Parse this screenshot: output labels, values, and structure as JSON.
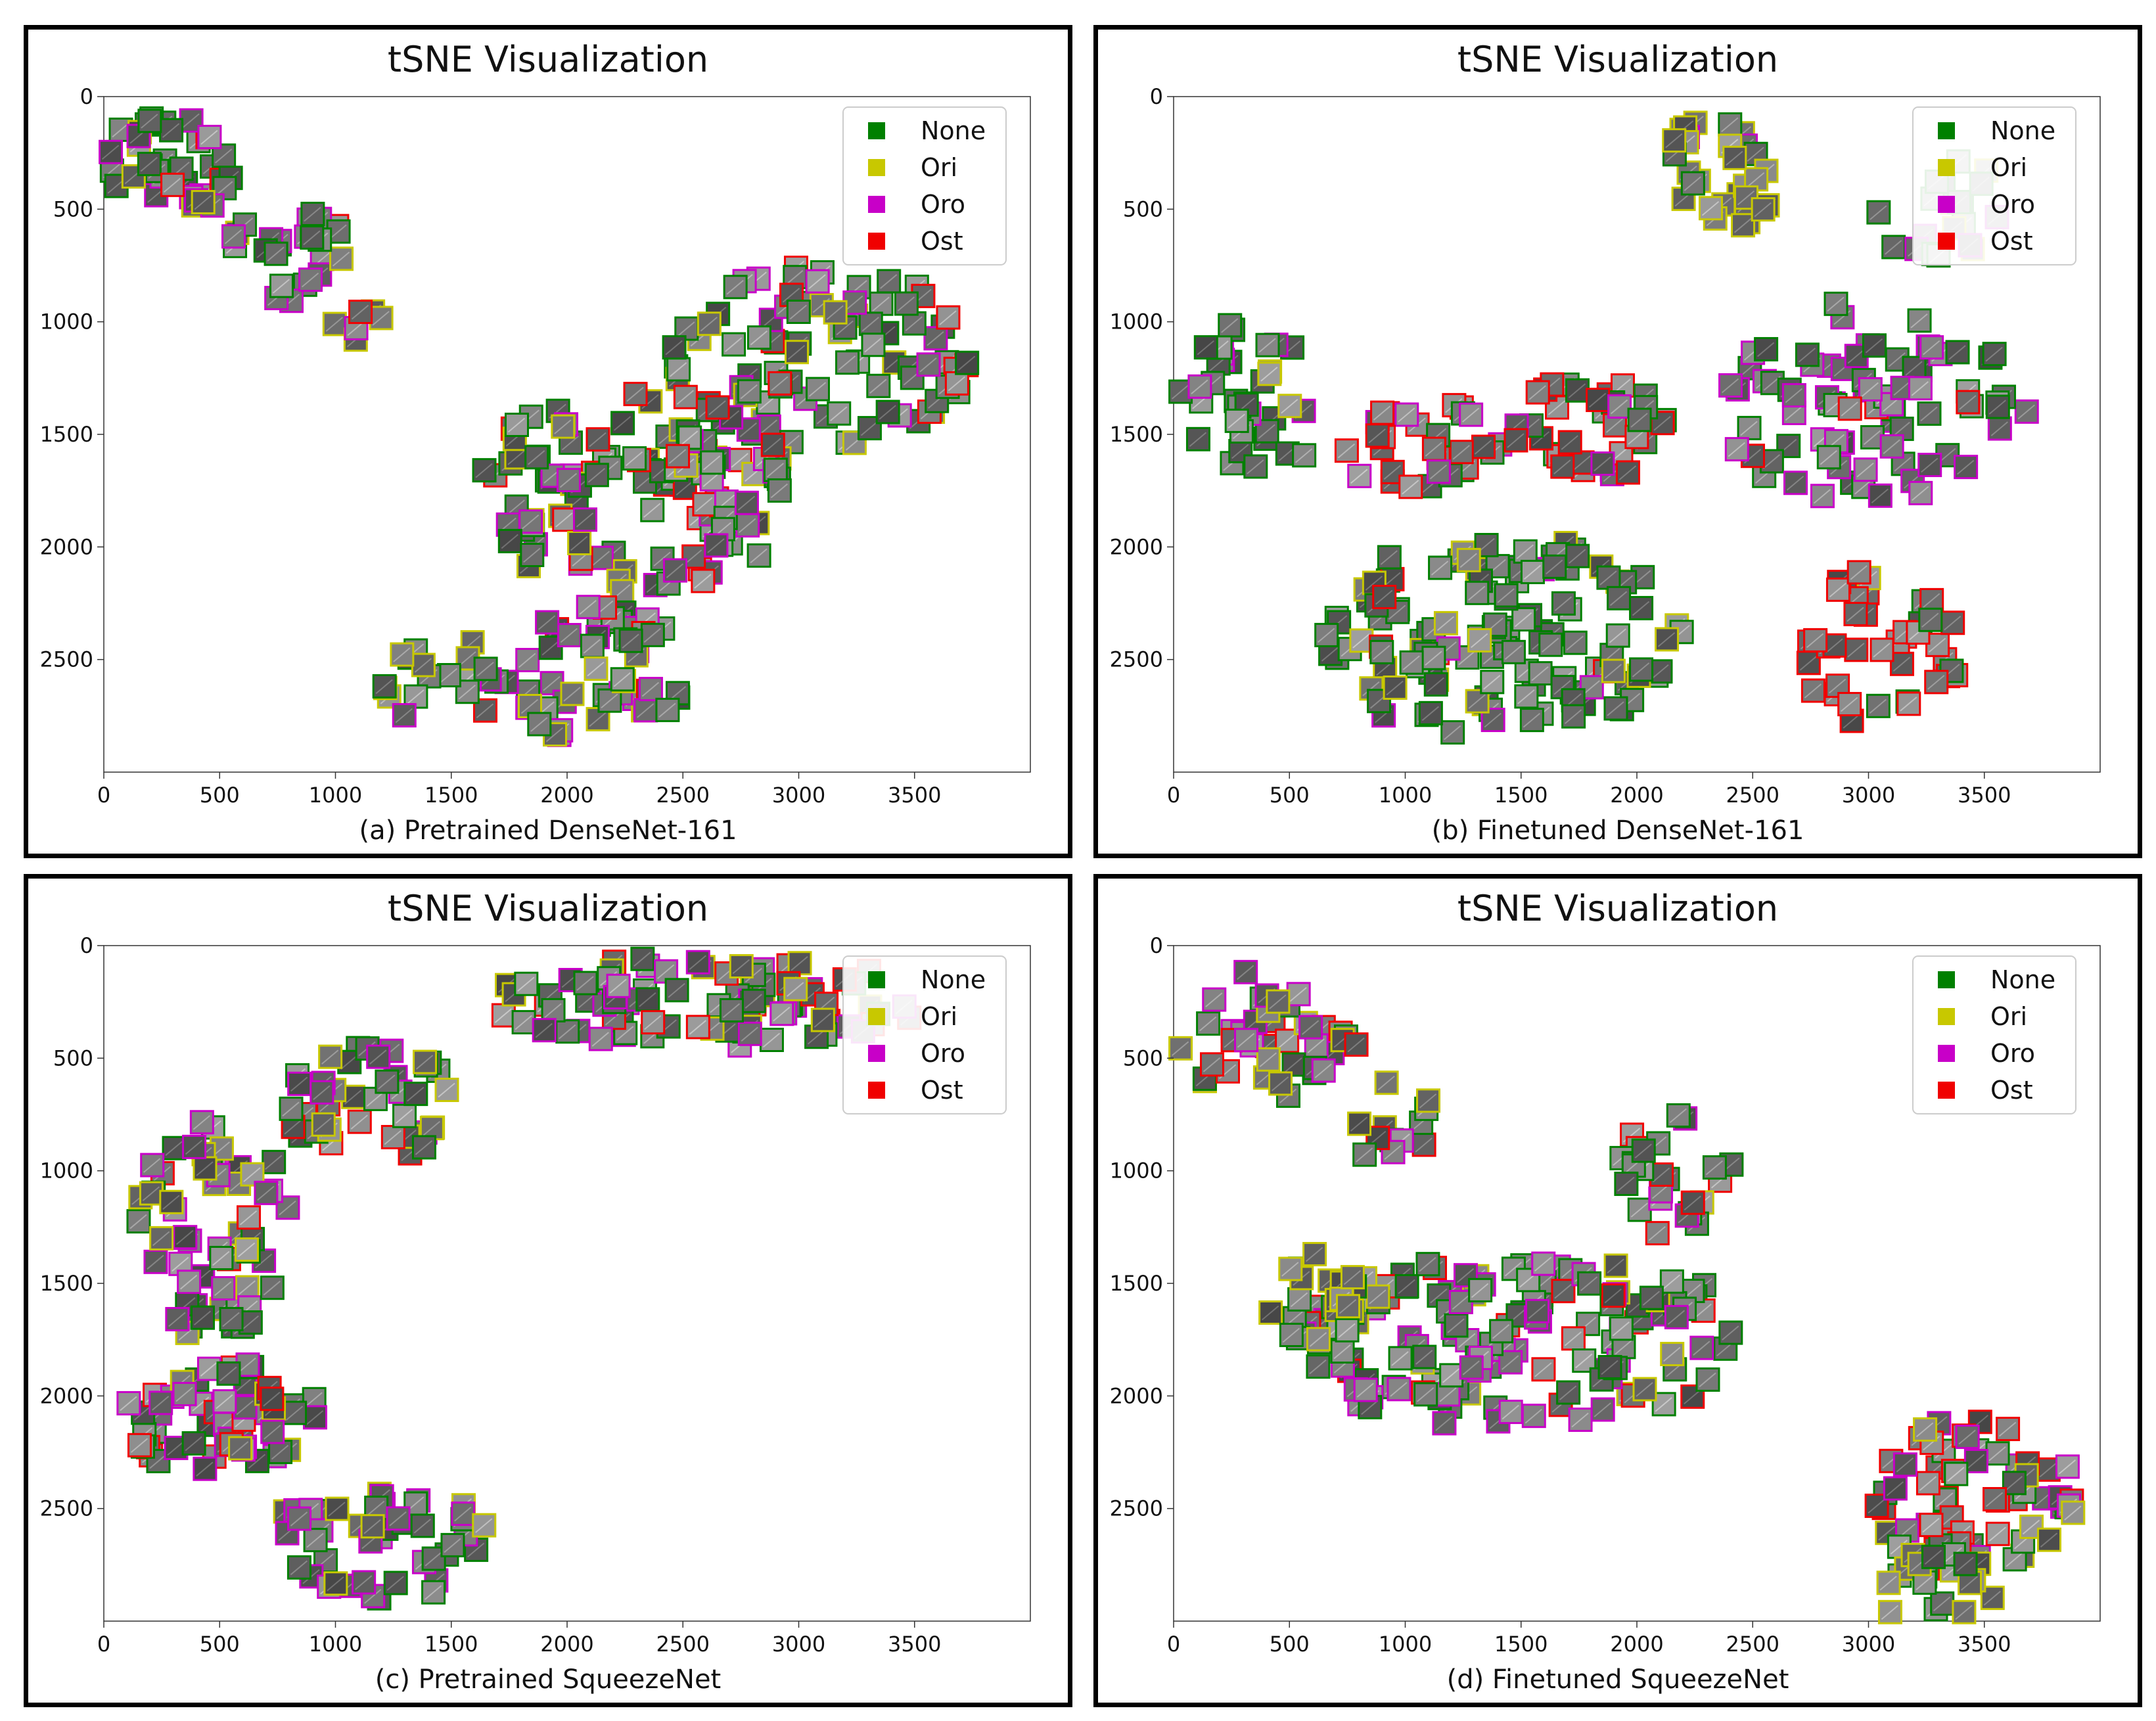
{
  "figure": {
    "legend": [
      {
        "label": "None",
        "color": "#008000"
      },
      {
        "label": "Ori",
        "color": "#c8c800"
      },
      {
        "label": "Oro",
        "color": "#c800c8"
      },
      {
        "label": "Ost",
        "color": "#f00000"
      }
    ]
  },
  "chart_data": [
    {
      "type": "scatter",
      "title": "tSNE Visualization",
      "caption": "(a) Pretrained DenseNet-161",
      "xlim": [
        0,
        4000
      ],
      "ylim": [
        0,
        3000
      ],
      "y_inverted": true,
      "xticks": [
        0,
        500,
        1000,
        1500,
        2000,
        2500,
        3000,
        3500
      ],
      "yticks": [
        0,
        500,
        1000,
        1500,
        2000,
        2500
      ],
      "legend_position": "top-right",
      "clusters": [
        {
          "cx": 300,
          "cy": 300,
          "rx": 320,
          "ry": 220,
          "n": 40,
          "mix": [
            0.55,
            0.1,
            0.3,
            0.05
          ]
        },
        {
          "cx": 800,
          "cy": 700,
          "rx": 260,
          "ry": 220,
          "n": 25,
          "mix": [
            0.5,
            0.1,
            0.3,
            0.1
          ]
        },
        {
          "cx": 1100,
          "cy": 1000,
          "rx": 120,
          "ry": 80,
          "n": 6,
          "mix": [
            0.3,
            0.4,
            0.1,
            0.2
          ]
        },
        {
          "cx": 3100,
          "cy": 1150,
          "rx": 650,
          "ry": 400,
          "n": 90,
          "mix": [
            0.5,
            0.15,
            0.2,
            0.15
          ]
        },
        {
          "cx": 2300,
          "cy": 1750,
          "rx": 700,
          "ry": 450,
          "n": 120,
          "mix": [
            0.45,
            0.15,
            0.25,
            0.15
          ]
        },
        {
          "cx": 2000,
          "cy": 2550,
          "rx": 550,
          "ry": 300,
          "n": 60,
          "mix": [
            0.4,
            0.2,
            0.3,
            0.1
          ]
        },
        {
          "cx": 1300,
          "cy": 2600,
          "rx": 150,
          "ry": 150,
          "n": 10,
          "mix": [
            0.4,
            0.4,
            0.2,
            0.0
          ]
        }
      ]
    },
    {
      "type": "scatter",
      "title": "tSNE Visualization",
      "caption": "(b) Finetuned DenseNet-161",
      "xlim": [
        0,
        4000
      ],
      "ylim": [
        0,
        3000
      ],
      "y_inverted": true,
      "xticks": [
        0,
        500,
        1000,
        1500,
        2000,
        2500,
        3000,
        3500
      ],
      "yticks": [
        0,
        500,
        1000,
        1500,
        2000,
        2500
      ],
      "legend_position": "top-right",
      "clusters": [
        {
          "cx": 2350,
          "cy": 350,
          "rx": 280,
          "ry": 250,
          "n": 30,
          "mix": [
            0.15,
            0.8,
            0.05,
            0.0
          ]
        },
        {
          "cx": 3300,
          "cy": 500,
          "rx": 300,
          "ry": 250,
          "n": 20,
          "mix": [
            0.5,
            0.1,
            0.4,
            0.0
          ]
        },
        {
          "cx": 300,
          "cy": 1350,
          "rx": 300,
          "ry": 350,
          "n": 35,
          "mix": [
            0.6,
            0.2,
            0.2,
            0.0
          ]
        },
        {
          "cx": 1000,
          "cy": 1550,
          "rx": 450,
          "ry": 220,
          "n": 30,
          "mix": [
            0.3,
            0.0,
            0.4,
            0.3
          ]
        },
        {
          "cx": 1800,
          "cy": 1450,
          "rx": 350,
          "ry": 250,
          "n": 35,
          "mix": [
            0.3,
            0.0,
            0.1,
            0.6
          ]
        },
        {
          "cx": 3000,
          "cy": 1350,
          "rx": 700,
          "ry": 450,
          "n": 80,
          "mix": [
            0.35,
            0.0,
            0.55,
            0.1
          ]
        },
        {
          "cx": 1400,
          "cy": 2400,
          "rx": 800,
          "ry": 450,
          "n": 130,
          "mix": [
            0.8,
            0.12,
            0.05,
            0.03
          ]
        },
        {
          "cx": 3050,
          "cy": 2450,
          "rx": 350,
          "ry": 350,
          "n": 40,
          "mix": [
            0.15,
            0.05,
            0.05,
            0.75
          ]
        }
      ]
    },
    {
      "type": "scatter",
      "title": "tSNE Visualization",
      "caption": "(c) Pretrained SqueezeNet",
      "xlim": [
        0,
        4000
      ],
      "ylim": [
        0,
        3000
      ],
      "y_inverted": true,
      "xticks": [
        0,
        500,
        1000,
        1500,
        2000,
        2500,
        3000,
        3500
      ],
      "yticks": [
        0,
        500,
        1000,
        1500,
        2000,
        2500
      ],
      "legend_position": "top-right",
      "clusters": [
        {
          "cx": 2600,
          "cy": 250,
          "rx": 1000,
          "ry": 200,
          "n": 90,
          "mix": [
            0.3,
            0.15,
            0.3,
            0.25
          ]
        },
        {
          "cx": 1150,
          "cy": 700,
          "rx": 400,
          "ry": 250,
          "n": 40,
          "mix": [
            0.4,
            0.2,
            0.25,
            0.15
          ]
        },
        {
          "cx": 450,
          "cy": 1250,
          "rx": 350,
          "ry": 500,
          "n": 60,
          "mix": [
            0.45,
            0.2,
            0.3,
            0.05
          ]
        },
        {
          "cx": 500,
          "cy": 2100,
          "rx": 450,
          "ry": 250,
          "n": 55,
          "mix": [
            0.4,
            0.1,
            0.3,
            0.2
          ]
        },
        {
          "cx": 1200,
          "cy": 2650,
          "rx": 500,
          "ry": 250,
          "n": 45,
          "mix": [
            0.5,
            0.1,
            0.4,
            0.0
          ]
        }
      ]
    },
    {
      "type": "scatter",
      "title": "tSNE Visualization",
      "caption": "(d) Finetuned SqueezeNet",
      "xlim": [
        0,
        4000
      ],
      "ylim": [
        0,
        3000
      ],
      "y_inverted": true,
      "xticks": [
        0,
        500,
        1000,
        1500,
        2000,
        2500,
        3000,
        3500
      ],
      "yticks": [
        0,
        500,
        1000,
        1500,
        2000,
        2500
      ],
      "legend_position": "top-right",
      "clusters": [
        {
          "cx": 400,
          "cy": 400,
          "rx": 400,
          "ry": 300,
          "n": 40,
          "mix": [
            0.35,
            0.15,
            0.35,
            0.15
          ]
        },
        {
          "cx": 950,
          "cy": 800,
          "rx": 200,
          "ry": 200,
          "n": 12,
          "mix": [
            0.3,
            0.3,
            0.2,
            0.2
          ]
        },
        {
          "cx": 2200,
          "cy": 1000,
          "rx": 300,
          "ry": 300,
          "n": 25,
          "mix": [
            0.55,
            0.05,
            0.15,
            0.25
          ]
        },
        {
          "cx": 1500,
          "cy": 1750,
          "rx": 1000,
          "ry": 400,
          "n": 150,
          "mix": [
            0.45,
            0.12,
            0.3,
            0.13
          ]
        },
        {
          "cx": 600,
          "cy": 1550,
          "rx": 250,
          "ry": 200,
          "n": 20,
          "mix": [
            0.3,
            0.65,
            0.05,
            0.0
          ]
        },
        {
          "cx": 3450,
          "cy": 2450,
          "rx": 450,
          "ry": 350,
          "n": 60,
          "mix": [
            0.25,
            0.1,
            0.2,
            0.45
          ]
        },
        {
          "cx": 3300,
          "cy": 2850,
          "rx": 350,
          "ry": 180,
          "n": 20,
          "mix": [
            0.4,
            0.5,
            0.0,
            0.1
          ]
        }
      ]
    }
  ]
}
